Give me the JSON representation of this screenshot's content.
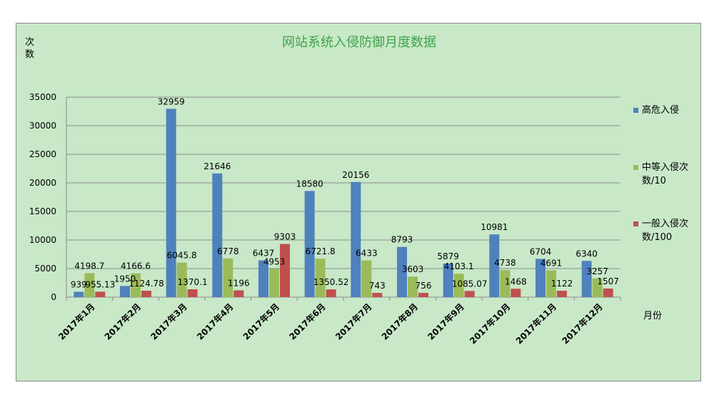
{
  "chart_data": {
    "type": "bar",
    "title": "网站系统入侵防御月度数据",
    "ylabel": "次数",
    "xlabel": "月份",
    "ylim": [
      0,
      35000
    ],
    "yticks": [
      0,
      5000,
      10000,
      15000,
      20000,
      25000,
      30000,
      35000
    ],
    "grid": true,
    "legend_position": "right",
    "categories": [
      "2017年1月",
      "2017年2月",
      "2017年3月",
      "2017年4月",
      "2017年5月",
      "2017年6月",
      "2017年7月",
      "2017年8月",
      "2017年9月",
      "2017年10月",
      "2017年11月",
      "2017年12月"
    ],
    "series": [
      {
        "name": "高危入侵",
        "color": "#4f81bd",
        "values": [
          939,
          1950,
          32959,
          21646,
          6437,
          18580,
          20156,
          8793,
          5879,
          10981,
          6704,
          6340
        ]
      },
      {
        "name": "中等入侵次数/10",
        "color": "#9bbb59",
        "values": [
          4198.7,
          4166.6,
          6045.8,
          6778,
          4953,
          6721.8,
          6433,
          3603,
          4103.1,
          4738,
          4691,
          3257
        ]
      },
      {
        "name": "一般入侵次数/100",
        "color": "#c0504d",
        "values": [
          955.13,
          1124.78,
          1370.1,
          1196,
          9303,
          1350.52,
          743,
          756,
          1085.07,
          1468,
          1122,
          1507
        ]
      }
    ]
  }
}
